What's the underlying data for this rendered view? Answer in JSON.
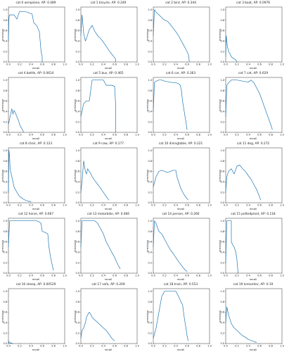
{
  "chart_data": [
    {
      "type": "line",
      "title": "cat 0 aeroplane, AP: 0.489",
      "xlabel": "recall",
      "ylabel": "precision",
      "xlim": [
        0,
        1
      ],
      "ylim": [
        0,
        1.05
      ],
      "x": [
        0,
        0.01,
        0.02,
        0.05,
        0.1,
        0.15,
        0.2,
        0.25,
        0.3,
        0.35,
        0.38,
        0.42,
        0.45,
        0.5,
        0.55,
        0.58,
        0.6,
        0.6
      ],
      "y": [
        0.4,
        0.85,
        0.9,
        0.9,
        0.9,
        0.82,
        0.97,
        0.96,
        0.96,
        0.95,
        0.93,
        0.92,
        0.75,
        0.7,
        0.58,
        0.2,
        0.1,
        0.0
      ]
    },
    {
      "type": "line",
      "title": "cat 1 bicycle, AP: 0.249",
      "xlabel": "recall",
      "ylabel": "precision",
      "xlim": [
        0,
        1
      ],
      "ylim": [
        0,
        1.05
      ],
      "x": [
        0,
        0.02,
        0.05,
        0.08,
        0.1,
        0.15,
        0.2,
        0.25,
        0.3,
        0.35,
        0.4,
        0.45,
        0.5,
        0.55,
        0.6,
        0.62,
        0.62
      ],
      "y": [
        0.5,
        0.9,
        0.55,
        0.4,
        0.45,
        0.62,
        0.7,
        0.58,
        0.5,
        0.45,
        0.38,
        0.3,
        0.22,
        0.15,
        0.08,
        0.05,
        0.0
      ]
    },
    {
      "type": "line",
      "title": "cat 2 bird, AP: 0.344",
      "xlabel": "recall",
      "ylabel": "precision",
      "xlim": [
        0,
        1
      ],
      "ylim": [
        0,
        1.05
      ],
      "x": [
        0,
        0.02,
        0.05,
        0.1,
        0.12,
        0.15,
        0.2,
        0.25,
        0.3,
        0.35,
        0.4,
        0.45,
        0.5,
        0.55,
        0.6,
        0.63,
        0.64
      ],
      "y": [
        0.5,
        1.0,
        0.95,
        0.9,
        0.88,
        0.85,
        0.8,
        0.78,
        0.72,
        0.65,
        0.58,
        0.5,
        0.4,
        0.3,
        0.2,
        0.12,
        0.0
      ]
    },
    {
      "type": "line",
      "title": "cat 3 boat, AP: 0.0976",
      "xlabel": "recall",
      "ylabel": "precision",
      "xlim": [
        0,
        1
      ],
      "ylim": [
        0,
        1.05
      ],
      "x": [
        0,
        0.01,
        0.02,
        0.03,
        0.05,
        0.08,
        0.1,
        0.12,
        0.15,
        0.18,
        0.2
      ],
      "y": [
        0.1,
        0.5,
        0.4,
        0.3,
        0.2,
        0.15,
        0.1,
        0.08,
        0.06,
        0.04,
        0.0
      ]
    },
    {
      "type": "line",
      "title": "cat 4 bottle, AP: 0.0614",
      "xlabel": "recall",
      "ylabel": "precision",
      "xlim": [
        0,
        1
      ],
      "ylim": [
        0,
        1.05
      ],
      "x": [
        0,
        0.03,
        0.06,
        0.08,
        0.1,
        0.12,
        0.15,
        0.18,
        0.2,
        0.22,
        0.25,
        0.27
      ],
      "y": [
        0.15,
        0.3,
        0.45,
        0.35,
        0.42,
        0.38,
        0.3,
        0.22,
        0.15,
        0.1,
        0.05,
        0.0
      ]
    },
    {
      "type": "line",
      "title": "cat 5 bus, AP: 0.465",
      "xlabel": "recall",
      "ylabel": "precision",
      "xlim": [
        0,
        1
      ],
      "ylim": [
        0,
        1.05
      ],
      "x": [
        0,
        0.05,
        0.1,
        0.15,
        0.2,
        0.25,
        0.3,
        0.35,
        0.4,
        0.45,
        0.48,
        0.5,
        0.55,
        0.6,
        0.62,
        0.62
      ],
      "y": [
        0.3,
        0.55,
        0.6,
        0.6,
        1.0,
        1.0,
        1.0,
        1.0,
        1.0,
        0.9,
        0.9,
        0.9,
        0.9,
        0.88,
        0.5,
        0.0
      ]
    },
    {
      "type": "line",
      "title": "cat 6 car, AP: 0.363",
      "xlabel": "recall",
      "ylabel": "precision",
      "xlim": [
        0,
        1
      ],
      "ylim": [
        0,
        1.05
      ],
      "x": [
        0,
        0.02,
        0.05,
        0.1,
        0.15,
        0.2,
        0.25,
        0.3,
        0.35,
        0.4,
        0.45,
        0.48,
        0.5,
        0.52,
        0.55,
        0.58,
        0.6
      ],
      "y": [
        0.4,
        0.95,
        0.98,
        1.0,
        1.0,
        0.98,
        0.97,
        0.96,
        0.95,
        0.95,
        0.93,
        0.9,
        0.8,
        0.6,
        0.4,
        0.2,
        0.05
      ]
    },
    {
      "type": "line",
      "title": "cat 7 cat, AP: 0.629",
      "xlabel": "recall",
      "ylabel": "precision",
      "xlim": [
        0,
        1
      ],
      "ylim": [
        0,
        1.05
      ],
      "x": [
        0,
        0.02,
        0.05,
        0.1,
        0.2,
        0.3,
        0.4,
        0.45,
        0.5,
        0.55,
        0.6,
        0.65,
        0.7,
        0.75,
        0.8,
        0.83
      ],
      "y": [
        0.3,
        0.9,
        0.95,
        1.0,
        1.0,
        0.98,
        0.96,
        1.0,
        0.95,
        0.85,
        0.75,
        0.6,
        0.45,
        0.3,
        0.15,
        0.05
      ]
    },
    {
      "type": "line",
      "title": "cat 8 chair, AP: 0.123",
      "xlabel": "recall",
      "ylabel": "precision",
      "xlim": [
        0,
        1
      ],
      "ylim": [
        0,
        1.05
      ],
      "x": [
        0,
        0.01,
        0.02,
        0.03,
        0.05,
        0.08,
        0.1,
        0.15,
        0.2,
        0.25,
        0.3,
        0.35,
        0.4
      ],
      "y": [
        0.2,
        1.0,
        0.9,
        0.65,
        0.55,
        0.4,
        0.3,
        0.2,
        0.12,
        0.08,
        0.05,
        0.03,
        0.02
      ]
    },
    {
      "type": "line",
      "title": "cat 9 cow, AP: 0.177",
      "xlabel": "recall",
      "ylabel": "precision",
      "xlim": [
        0,
        1
      ],
      "ylim": [
        0,
        1.05
      ],
      "x": [
        0,
        0.02,
        0.05,
        0.08,
        0.1,
        0.12,
        0.15,
        0.18,
        0.2,
        0.25,
        0.3,
        0.35,
        0.4,
        0.45,
        0.5
      ],
      "y": [
        0.2,
        0.4,
        0.8,
        0.6,
        0.55,
        0.65,
        0.6,
        0.55,
        0.5,
        0.42,
        0.35,
        0.28,
        0.2,
        0.12,
        0.05
      ]
    },
    {
      "type": "line",
      "title": "cat 10 diningtable, AP: 0.221",
      "xlabel": "recall",
      "ylabel": "precision",
      "xlim": [
        0,
        1
      ],
      "ylim": [
        0,
        1.05
      ],
      "x": [
        0,
        0.05,
        0.1,
        0.15,
        0.2,
        0.25,
        0.3,
        0.35,
        0.4,
        0.42,
        0.45,
        0.48,
        0.5,
        0.55,
        0.6,
        0.62
      ],
      "y": [
        0.3,
        0.5,
        0.6,
        0.62,
        0.6,
        0.58,
        0.6,
        0.62,
        0.62,
        0.5,
        0.4,
        0.3,
        0.25,
        0.15,
        0.08,
        0.05
      ]
    },
    {
      "type": "line",
      "title": "cat 11 dog, AP: 0.272",
      "xlabel": "recall",
      "ylabel": "precision",
      "xlim": [
        0,
        1
      ],
      "ylim": [
        0,
        1.05
      ],
      "x": [
        0,
        0.02,
        0.05,
        0.1,
        0.15,
        0.2,
        0.25,
        0.3,
        0.35,
        0.4,
        0.45,
        0.5,
        0.55,
        0.6,
        0.62
      ],
      "y": [
        0.2,
        0.5,
        0.6,
        0.65,
        0.55,
        0.7,
        0.72,
        0.65,
        0.6,
        0.52,
        0.45,
        0.35,
        0.25,
        0.12,
        0.05
      ]
    },
    {
      "type": "line",
      "title": "cat 12 horse, AP: 0.667",
      "xlabel": "recall",
      "ylabel": "precision",
      "xlim": [
        0,
        1
      ],
      "ylim": [
        0,
        1.05
      ],
      "x": [
        0,
        0.02,
        0.05,
        0.1,
        0.2,
        0.3,
        0.4,
        0.5,
        0.55,
        0.58,
        0.6,
        0.65,
        0.7,
        0.72,
        0.75,
        0.78,
        0.8
      ],
      "y": [
        0.5,
        1.0,
        1.0,
        1.0,
        1.0,
        1.0,
        1.0,
        1.0,
        0.98,
        0.95,
        0.8,
        0.78,
        0.75,
        0.5,
        0.3,
        0.15,
        0.05
      ]
    },
    {
      "type": "line",
      "title": "cat 13 motorbike, AP: 0.466",
      "xlabel": "recall",
      "ylabel": "precision",
      "xlim": [
        0,
        1
      ],
      "ylim": [
        0,
        1.05
      ],
      "x": [
        0,
        0.02,
        0.05,
        0.1,
        0.15,
        0.2,
        0.25,
        0.3,
        0.35,
        0.4,
        0.45,
        0.5,
        0.55,
        0.6,
        0.65,
        0.7
      ],
      "y": [
        0.5,
        1.0,
        1.0,
        1.0,
        1.0,
        1.0,
        1.0,
        0.95,
        0.85,
        0.75,
        0.6,
        0.5,
        0.4,
        0.3,
        0.18,
        0.08
      ]
    },
    {
      "type": "line",
      "title": "cat 14 person, AP: 0.266",
      "xlabel": "recall",
      "ylabel": "precision",
      "xlim": [
        0,
        1
      ],
      "ylim": [
        0,
        1.05
      ],
      "x": [
        0,
        0.02,
        0.05,
        0.08,
        0.1,
        0.15,
        0.2,
        0.25,
        0.3,
        0.35,
        0.4,
        0.45,
        0.5,
        0.55,
        0.6
      ],
      "y": [
        0.5,
        1.0,
        0.95,
        0.85,
        0.8,
        0.75,
        0.65,
        0.55,
        0.45,
        0.38,
        0.3,
        0.22,
        0.15,
        0.08,
        0.03
      ]
    },
    {
      "type": "line",
      "title": "cat 15 pottedplant, AP: 0.118",
      "xlabel": "recall",
      "ylabel": "precision",
      "xlim": [
        0,
        1
      ],
      "ylim": [
        0,
        1.05
      ],
      "x": [
        0,
        0.02,
        0.05,
        0.08,
        0.1,
        0.1,
        0.12,
        0.15,
        0.18,
        0.2,
        0.22
      ],
      "y": [
        0.2,
        1.0,
        1.0,
        1.0,
        1.0,
        0.6,
        0.55,
        0.5,
        0.4,
        0.25,
        0.0
      ]
    },
    {
      "type": "line",
      "title": "cat 16 sheep, AP: 0.00529",
      "xlabel": "recall",
      "ylabel": "precision",
      "xlim": [
        0,
        1
      ],
      "ylim": [
        0,
        1.05
      ],
      "x": [
        0,
        0.01,
        0.02,
        0.03,
        0.05,
        0.08
      ],
      "y": [
        0.05,
        0.02,
        0.03,
        0.01,
        0.01,
        0.0
      ]
    },
    {
      "type": "line",
      "title": "cat 17 sofa, AP: 0.209",
      "xlabel": "recall",
      "ylabel": "precision",
      "xlim": [
        0,
        1
      ],
      "ylim": [
        0,
        1.05
      ],
      "x": [
        0,
        0.02,
        0.05,
        0.08,
        0.1,
        0.12,
        0.15,
        0.18,
        0.2,
        0.25,
        0.3,
        0.35,
        0.4,
        0.45,
        0.5,
        0.55,
        0.6
      ],
      "y": [
        0.1,
        0.25,
        0.3,
        0.4,
        0.5,
        0.55,
        0.6,
        0.55,
        0.5,
        0.45,
        0.4,
        0.35,
        0.3,
        0.25,
        0.18,
        0.1,
        0.05
      ]
    },
    {
      "type": "line",
      "title": "cat 18 train, AP: 0.553",
      "xlabel": "recall",
      "ylabel": "precision",
      "xlim": [
        0,
        1
      ],
      "ylim": [
        0,
        1.05
      ],
      "x": [
        0,
        0.05,
        0.1,
        0.15,
        0.2,
        0.25,
        0.3,
        0.35,
        0.4,
        0.45,
        0.5,
        0.52,
        0.55,
        0.58,
        0.6,
        0.62
      ],
      "y": [
        0.1,
        0.3,
        0.6,
        0.9,
        1.0,
        1.0,
        1.0,
        1.0,
        1.0,
        0.9,
        0.78,
        0.75,
        0.5,
        0.3,
        0.15,
        0.05
      ]
    },
    {
      "type": "line",
      "title": "cat 19 tvmonitor, AP: 0.19",
      "xlabel": "recall",
      "ylabel": "precision",
      "xlim": [
        0,
        1
      ],
      "ylim": [
        0,
        1.05
      ],
      "x": [
        0,
        0.02,
        0.05,
        0.08,
        0.1,
        0.15,
        0.2,
        0.25,
        0.3,
        0.35,
        0.4,
        0.45,
        0.5,
        0.55
      ],
      "y": [
        0.4,
        0.7,
        0.55,
        0.45,
        0.38,
        0.3,
        0.25,
        0.2,
        0.15,
        0.12,
        0.08,
        0.06,
        0.04,
        0.02
      ]
    }
  ],
  "x_ticks": [
    "0.0",
    "0.2",
    "0.4",
    "0.6",
    "0.8",
    "1.0"
  ],
  "y_ticks": [
    "0.0",
    "0.2",
    "0.4",
    "0.6",
    "0.8",
    "1.0"
  ],
  "line_color": "#1f77b4",
  "axis_color": "#000000"
}
